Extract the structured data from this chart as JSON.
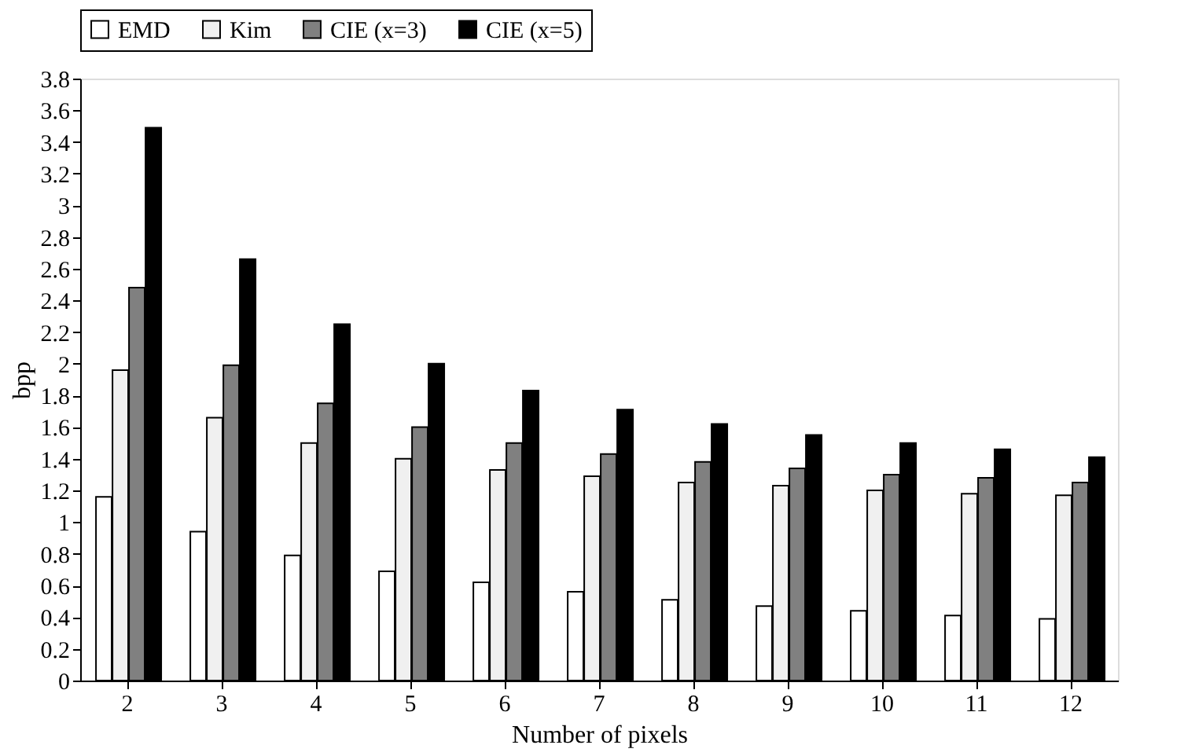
{
  "chart_data": {
    "type": "bar",
    "xlabel": "Number of pixels",
    "ylabel": "bpp",
    "categories": [
      "2",
      "3",
      "4",
      "5",
      "6",
      "7",
      "8",
      "9",
      "10",
      "11",
      "12"
    ],
    "series": [
      {
        "name": "EMD",
        "color": "#ffffff",
        "values": [
          1.16,
          0.94,
          0.79,
          0.69,
          0.62,
          0.56,
          0.51,
          0.47,
          0.44,
          0.41,
          0.39
        ]
      },
      {
        "name": "Kim",
        "color": "#f0f0f0",
        "values": [
          1.96,
          1.66,
          1.5,
          1.4,
          1.33,
          1.29,
          1.25,
          1.23,
          1.2,
          1.18,
          1.17
        ]
      },
      {
        "name": "CIE (x=3)",
        "color": "#808080",
        "values": [
          2.48,
          1.99,
          1.75,
          1.6,
          1.5,
          1.43,
          1.38,
          1.34,
          1.3,
          1.28,
          1.25
        ]
      },
      {
        "name": "CIE (x=5)",
        "color": "#000000",
        "values": [
          3.49,
          2.66,
          2.25,
          2.0,
          1.83,
          1.71,
          1.62,
          1.55,
          1.5,
          1.46,
          1.41
        ]
      }
    ],
    "ylim": [
      0,
      3.8
    ],
    "yticks": [
      0,
      0.2,
      0.4,
      0.6,
      0.8,
      1,
      1.2,
      1.4,
      1.6,
      1.8,
      2,
      2.2,
      2.4,
      2.6,
      2.8,
      3,
      3.2,
      3.4,
      3.6,
      3.8
    ],
    "grid": false,
    "legend": "top"
  }
}
